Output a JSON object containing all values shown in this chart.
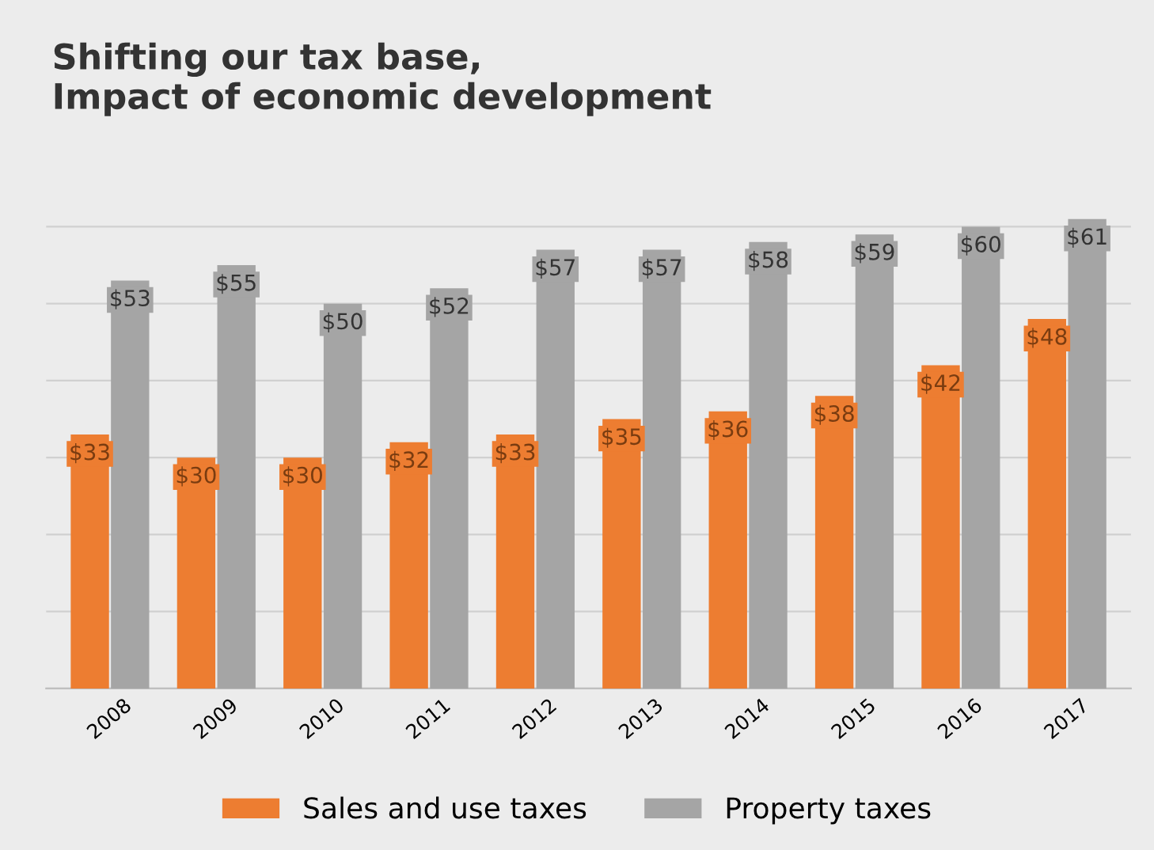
{
  "chart_data": {
    "type": "bar",
    "title": "Shifting our tax base,\nImpact of economic development",
    "categories": [
      "2008",
      "2009",
      "2010",
      "2011",
      "2012",
      "2013",
      "2014",
      "2015",
      "2016",
      "2017"
    ],
    "series": [
      {
        "name": "Sales and use taxes",
        "color": "#ed7d31",
        "values": [
          33,
          30,
          30,
          32,
          33,
          35,
          36,
          38,
          42,
          48
        ],
        "value_labels": [
          "$33",
          "$30",
          "$30",
          "$32",
          "$33",
          "$35",
          "$36",
          "$38",
          "$42",
          "$48"
        ]
      },
      {
        "name": "Property taxes",
        "color": "#a5a5a5",
        "values": [
          53,
          55,
          50,
          52,
          57,
          57,
          58,
          59,
          60,
          61
        ],
        "value_labels": [
          "$53",
          "$55",
          "$50",
          "$52",
          "$57",
          "$57",
          "$58",
          "$59",
          "$60",
          "$61"
        ]
      }
    ],
    "tick_labels": "x",
    "grid": "y",
    "legend": "bottom"
  }
}
